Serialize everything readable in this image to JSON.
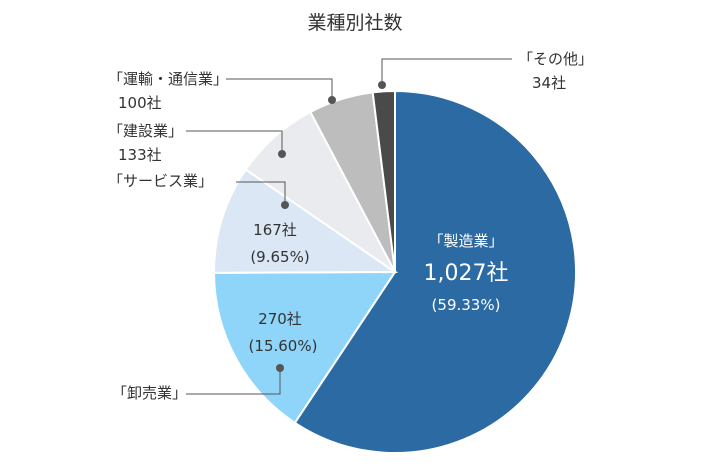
{
  "chart_data": {
    "type": "pie",
    "title": "業種別社数",
    "slices": [
      {
        "name": "「製造業」",
        "count_label": "1,027社",
        "percent_label": "(59.33%)",
        "value": 1027,
        "color": "#2b6aa3"
      },
      {
        "name": "「卸売業」",
        "count_label": "270社",
        "percent_label": "(15.60%)",
        "value": 270,
        "color": "#8fd5f9"
      },
      {
        "name": "「サービス業」",
        "count_label": "167社",
        "percent_label": "(9.65%)",
        "value": 167,
        "color": "#dce7f5"
      },
      {
        "name": "「建設業」",
        "count_label": "133社",
        "value": 133,
        "color": "#e9ebef"
      },
      {
        "name": "「運輸・通信業」",
        "count_label": "100社",
        "value": 100,
        "color": "#bdbdbd"
      },
      {
        "name": "「その他」",
        "count_label": "34社",
        "value": 34,
        "color": "#4a4a4a"
      }
    ],
    "start": "12 o'clock",
    "direction": "clockwise"
  }
}
